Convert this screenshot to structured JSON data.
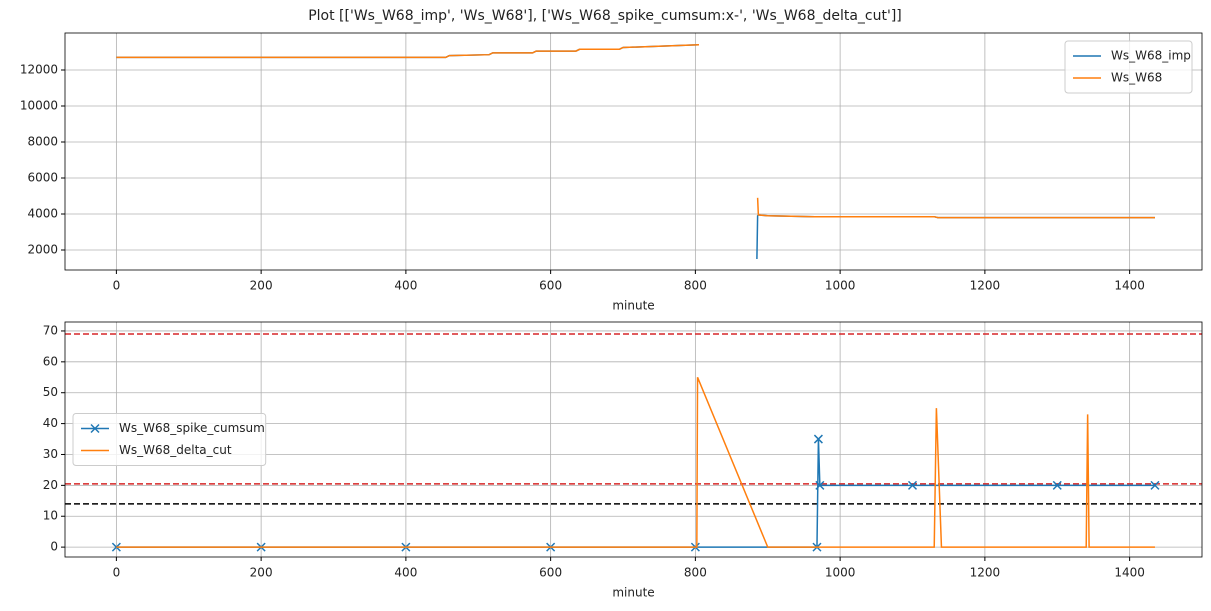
{
  "title": "Plot [['Ws_W68_imp', 'Ws_W68'], ['Ws_W68_spike_cumsum:x-', 'Ws_W68_delta_cut']]",
  "chart_data": [
    {
      "type": "line",
      "xlabel": "minute",
      "xlim": [
        -71,
        1500
      ],
      "xticks": [
        0,
        200,
        400,
        600,
        800,
        1000,
        1200,
        1400
      ],
      "ylim": [
        889,
        14055
      ],
      "yticks": [
        2000,
        4000,
        6000,
        8000,
        10000,
        12000
      ],
      "grid": true,
      "legend": "upper right",
      "series": [
        {
          "name": "Ws_W68_imp",
          "color": "#1f77b4",
          "x": [
            0,
            455,
            460,
            515,
            520,
            575,
            580,
            635,
            640,
            695,
            700,
            805,
            806,
            885,
            886,
            887,
            900,
            965,
            970,
            1130,
            1135,
            1340,
            1345,
            1435
          ],
          "values": [
            12700,
            12700,
            12800,
            12850,
            12950,
            12950,
            13050,
            13050,
            13150,
            13150,
            13250,
            13400,
            null,
            1500,
            3900,
            3950,
            3900,
            3850,
            3850,
            3850,
            3800,
            3800,
            3800,
            3800
          ]
        },
        {
          "name": "Ws_W68",
          "color": "#ff7f0e",
          "x": [
            0,
            455,
            460,
            515,
            520,
            575,
            580,
            635,
            640,
            695,
            700,
            805,
            806,
            885,
            886,
            887,
            900,
            965,
            970,
            1130,
            1135,
            1340,
            1345,
            1435
          ],
          "values": [
            12700,
            12700,
            12800,
            12850,
            12950,
            12950,
            13050,
            13050,
            13150,
            13150,
            13250,
            13400,
            null,
            null,
            4900,
            3950,
            3900,
            3850,
            3850,
            3850,
            3800,
            3800,
            3800,
            3800
          ]
        }
      ]
    },
    {
      "type": "line",
      "xlabel": "minute",
      "xlim": [
        -71,
        1500
      ],
      "xticks": [
        0,
        200,
        400,
        600,
        800,
        1000,
        1200,
        1400
      ],
      "ylim": [
        -3.2,
        72.9
      ],
      "yticks": [
        0,
        10,
        20,
        30,
        40,
        50,
        60,
        70
      ],
      "grid": true,
      "legend": "center left",
      "hlines": [
        {
          "value": 69,
          "color": "#d62728"
        },
        {
          "value": 20.5,
          "color": "#d62728"
        },
        {
          "value": 14,
          "color": "#000000"
        }
      ],
      "series": [
        {
          "name": "Ws_W68_spike_cumsum",
          "color": "#1f77b4",
          "marker": "x",
          "x": [
            0,
            200,
            400,
            600,
            800,
            968,
            970,
            972,
            1100,
            1300,
            1435
          ],
          "values": [
            0,
            0,
            0,
            0,
            0,
            0,
            35,
            20,
            20,
            20,
            20
          ]
        },
        {
          "name": "Ws_W68_delta_cut",
          "color": "#ff7f0e",
          "x": [
            0,
            802,
            803,
            900,
            1130,
            1133,
            1140,
            1340,
            1342,
            1344,
            1435
          ],
          "values": [
            0,
            0,
            55,
            0,
            0,
            45,
            0,
            0,
            43,
            0,
            0
          ]
        }
      ]
    }
  ]
}
